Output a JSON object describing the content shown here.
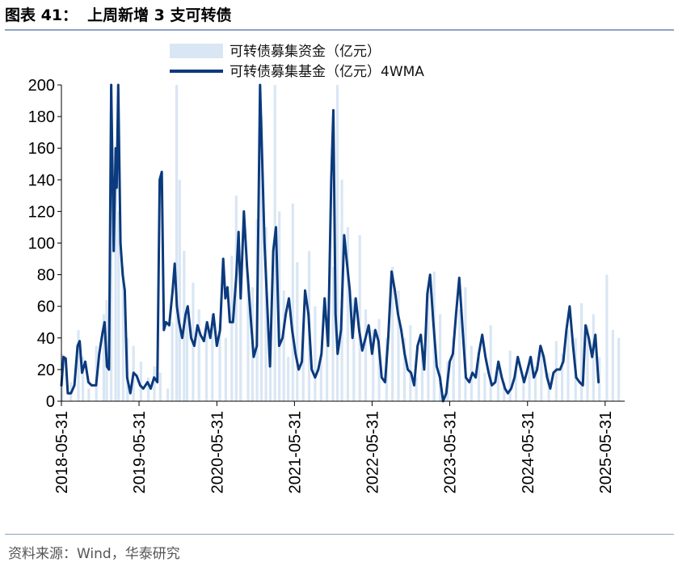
{
  "header": {
    "figure_number": "图表 41：",
    "title": "上周新增 3 支可转债"
  },
  "footer": {
    "source": "资料来源：Wind，华泰研究"
  },
  "colors": {
    "bars": "#d9e6f4",
    "line": "#0b3a7d",
    "rule": "#8ea3c2"
  },
  "chart_data": {
    "type": "bar+line",
    "title": "",
    "xlabel": "",
    "ylabel": "",
    "ylim": [
      0,
      200
    ],
    "yticks": [
      0,
      20,
      40,
      60,
      80,
      100,
      120,
      140,
      160,
      180,
      200
    ],
    "x_range": [
      "2018-05-31",
      "2025-08-31"
    ],
    "xticks": [
      "2018-05-31",
      "2019-05-31",
      "2020-05-31",
      "2021-05-31",
      "2022-05-31",
      "2023-05-31",
      "2024-05-31",
      "2025-05-31"
    ],
    "legend": {
      "position": "top",
      "entries": [
        "可转债募集资金（亿元）",
        "可转债募集基金（亿元）4WMA"
      ]
    },
    "series": [
      {
        "name": "可转债募集资金（亿元）",
        "type": "bar",
        "points": [
          [
            "2018-06-03",
            30
          ],
          [
            "2018-07-15",
            12
          ],
          [
            "2018-08-19",
            45
          ],
          [
            "2018-09-09",
            28
          ],
          [
            "2018-10-07",
            8
          ],
          [
            "2018-11-11",
            35
          ],
          [
            "2018-12-16",
            55
          ],
          [
            "2018-12-30",
            64
          ],
          [
            "2019-01-20",
            200
          ],
          [
            "2019-02-10",
            160
          ],
          [
            "2019-02-24",
            120
          ],
          [
            "2019-03-17",
            85
          ],
          [
            "2019-04-07",
            40
          ],
          [
            "2019-05-05",
            35
          ],
          [
            "2019-06-09",
            25
          ],
          [
            "2019-07-14",
            15
          ],
          [
            "2019-08-11",
            22
          ],
          [
            "2019-09-08",
            18
          ],
          [
            "2019-10-13",
            8
          ],
          [
            "2019-11-03",
            50
          ],
          [
            "2019-11-24",
            200
          ],
          [
            "2019-12-08",
            140
          ],
          [
            "2019-12-29",
            95
          ],
          [
            "2020-01-12",
            60
          ],
          [
            "2020-02-09",
            75
          ],
          [
            "2020-03-08",
            58
          ],
          [
            "2020-04-12",
            45
          ],
          [
            "2020-05-10",
            55
          ],
          [
            "2020-06-14",
            48
          ],
          [
            "2020-07-12",
            40
          ],
          [
            "2020-08-09",
            92
          ],
          [
            "2020-08-30",
            130
          ],
          [
            "2020-09-20",
            78
          ],
          [
            "2020-10-25",
            80
          ],
          [
            "2020-11-15",
            72
          ],
          [
            "2020-12-06",
            115
          ],
          [
            "2020-12-27",
            180
          ],
          [
            "2021-01-17",
            110
          ],
          [
            "2021-02-07",
            35
          ],
          [
            "2021-02-28",
            200
          ],
          [
            "2021-03-21",
            120
          ],
          [
            "2021-04-11",
            70
          ],
          [
            "2021-05-02",
            28
          ],
          [
            "2021-05-23",
            125
          ],
          [
            "2021-06-13",
            88
          ],
          [
            "2021-07-11",
            50
          ],
          [
            "2021-08-08",
            95
          ],
          [
            "2021-09-05",
            60
          ],
          [
            "2021-10-03",
            30
          ],
          [
            "2021-10-31",
            45
          ],
          [
            "2021-11-28",
            85
          ],
          [
            "2021-12-19",
            200
          ],
          [
            "2022-01-09",
            140
          ],
          [
            "2022-02-06",
            110
          ],
          [
            "2022-03-06",
            65
          ],
          [
            "2022-04-03",
            105
          ],
          [
            "2022-05-01",
            58
          ],
          [
            "2022-06-05",
            45
          ],
          [
            "2022-07-03",
            52
          ],
          [
            "2022-08-07",
            40
          ],
          [
            "2022-09-04",
            85
          ],
          [
            "2022-10-02",
            70
          ],
          [
            "2022-10-30",
            40
          ],
          [
            "2022-11-27",
            48
          ],
          [
            "2022-12-25",
            15
          ],
          [
            "2023-01-22",
            35
          ],
          [
            "2023-02-19",
            70
          ],
          [
            "2023-03-19",
            82
          ],
          [
            "2023-04-16",
            55
          ],
          [
            "2023-05-21",
            25
          ],
          [
            "2023-06-18",
            40
          ],
          [
            "2023-07-16",
            58
          ],
          [
            "2023-08-13",
            72
          ],
          [
            "2023-09-10",
            35
          ],
          [
            "2023-10-15",
            28
          ],
          [
            "2023-11-12",
            18
          ],
          [
            "2023-12-10",
            48
          ],
          [
            "2024-01-14",
            22
          ],
          [
            "2024-02-11",
            12
          ],
          [
            "2024-03-10",
            32
          ],
          [
            "2024-04-07",
            20
          ],
          [
            "2024-05-12",
            15
          ],
          [
            "2024-06-09",
            28
          ],
          [
            "2024-07-07",
            22
          ],
          [
            "2024-08-04",
            30
          ],
          [
            "2024-09-08",
            18
          ],
          [
            "2024-10-13",
            38
          ],
          [
            "2024-11-10",
            30
          ],
          [
            "2024-12-08",
            45
          ],
          [
            "2025-01-12",
            40
          ],
          [
            "2025-02-09",
            62
          ],
          [
            "2025-03-09",
            48
          ],
          [
            "2025-04-06",
            55
          ],
          [
            "2025-05-04",
            28
          ],
          [
            "2025-06-08",
            80
          ],
          [
            "2025-07-06",
            45
          ],
          [
            "2025-08-03",
            40
          ]
        ]
      },
      {
        "name": "可转债募集基金（亿元）4WMA",
        "type": "line",
        "points": [
          [
            "2018-05-31",
            10
          ],
          [
            "2018-06-10",
            28
          ],
          [
            "2018-06-20",
            27
          ],
          [
            "2018-06-30",
            5
          ],
          [
            "2018-07-15",
            5
          ],
          [
            "2018-07-31",
            10
          ],
          [
            "2018-08-15",
            35
          ],
          [
            "2018-08-25",
            38
          ],
          [
            "2018-09-05",
            18
          ],
          [
            "2018-09-20",
            25
          ],
          [
            "2018-10-05",
            12
          ],
          [
            "2018-10-20",
            10
          ],
          [
            "2018-11-10",
            10
          ],
          [
            "2018-11-25",
            30
          ],
          [
            "2018-12-10",
            43
          ],
          [
            "2018-12-20",
            50
          ],
          [
            "2018-12-31",
            22
          ],
          [
            "2019-01-10",
            20
          ],
          [
            "2019-01-20",
            200
          ],
          [
            "2019-02-01",
            95
          ],
          [
            "2019-02-10",
            160
          ],
          [
            "2019-02-15",
            135
          ],
          [
            "2019-02-22",
            200
          ],
          [
            "2019-03-05",
            100
          ],
          [
            "2019-03-15",
            80
          ],
          [
            "2019-03-25",
            70
          ],
          [
            "2019-04-05",
            15
          ],
          [
            "2019-04-20",
            5
          ],
          [
            "2019-05-05",
            18
          ],
          [
            "2019-05-20",
            16
          ],
          [
            "2019-06-05",
            10
          ],
          [
            "2019-06-20",
            8
          ],
          [
            "2019-07-10",
            12
          ],
          [
            "2019-07-25",
            8
          ],
          [
            "2019-08-10",
            15
          ],
          [
            "2019-08-25",
            12
          ],
          [
            "2019-09-05",
            140
          ],
          [
            "2019-09-15",
            145
          ],
          [
            "2019-09-25",
            45
          ],
          [
            "2019-10-05",
            50
          ],
          [
            "2019-10-20",
            48
          ],
          [
            "2019-11-05",
            70
          ],
          [
            "2019-11-15",
            87
          ],
          [
            "2019-11-25",
            60
          ],
          [
            "2019-12-05",
            50
          ],
          [
            "2019-12-20",
            40
          ],
          [
            "2020-01-05",
            55
          ],
          [
            "2020-01-15",
            60
          ],
          [
            "2020-01-31",
            40
          ],
          [
            "2020-02-15",
            35
          ],
          [
            "2020-03-01",
            48
          ],
          [
            "2020-03-15",
            42
          ],
          [
            "2020-03-31",
            38
          ],
          [
            "2020-04-15",
            50
          ],
          [
            "2020-04-30",
            40
          ],
          [
            "2020-05-15",
            55
          ],
          [
            "2020-05-31",
            35
          ],
          [
            "2020-06-15",
            45
          ],
          [
            "2020-06-30",
            90
          ],
          [
            "2020-07-10",
            65
          ],
          [
            "2020-07-20",
            72
          ],
          [
            "2020-07-31",
            50
          ],
          [
            "2020-08-15",
            50
          ],
          [
            "2020-08-31",
            80
          ],
          [
            "2020-09-10",
            107
          ],
          [
            "2020-09-20",
            65
          ],
          [
            "2020-10-05",
            120
          ],
          [
            "2020-10-20",
            85
          ],
          [
            "2020-11-05",
            55
          ],
          [
            "2020-11-20",
            28
          ],
          [
            "2020-12-05",
            35
          ],
          [
            "2020-12-20",
            200
          ],
          [
            "2020-12-31",
            150
          ],
          [
            "2021-01-10",
            100
          ],
          [
            "2021-01-25",
            55
          ],
          [
            "2021-02-05",
            22
          ],
          [
            "2021-02-20",
            95
          ],
          [
            "2021-03-05",
            110
          ],
          [
            "2021-03-20",
            35
          ],
          [
            "2021-04-05",
            40
          ],
          [
            "2021-04-20",
            55
          ],
          [
            "2021-05-05",
            65
          ],
          [
            "2021-05-20",
            45
          ],
          [
            "2021-06-05",
            30
          ],
          [
            "2021-06-20",
            20
          ],
          [
            "2021-07-05",
            25
          ],
          [
            "2021-07-20",
            70
          ],
          [
            "2021-08-05",
            55
          ],
          [
            "2021-08-20",
            20
          ],
          [
            "2021-09-05",
            15
          ],
          [
            "2021-09-20",
            20
          ],
          [
            "2021-10-05",
            30
          ],
          [
            "2021-10-20",
            65
          ],
          [
            "2021-11-05",
            35
          ],
          [
            "2021-11-20",
            140
          ],
          [
            "2021-11-30",
            184
          ],
          [
            "2021-12-10",
            55
          ],
          [
            "2021-12-20",
            30
          ],
          [
            "2022-01-05",
            45
          ],
          [
            "2022-01-20",
            105
          ],
          [
            "2022-01-31",
            90
          ],
          [
            "2022-02-15",
            70
          ],
          [
            "2022-02-28",
            40
          ],
          [
            "2022-03-15",
            65
          ],
          [
            "2022-03-31",
            45
          ],
          [
            "2022-04-15",
            32
          ],
          [
            "2022-04-30",
            40
          ],
          [
            "2022-05-15",
            48
          ],
          [
            "2022-05-31",
            30
          ],
          [
            "2022-06-15",
            45
          ],
          [
            "2022-06-30",
            38
          ],
          [
            "2022-07-15",
            15
          ],
          [
            "2022-07-31",
            12
          ],
          [
            "2022-08-15",
            40
          ],
          [
            "2022-08-31",
            82
          ],
          [
            "2022-09-15",
            70
          ],
          [
            "2022-09-30",
            55
          ],
          [
            "2022-10-15",
            45
          ],
          [
            "2022-10-31",
            30
          ],
          [
            "2022-11-15",
            20
          ],
          [
            "2022-11-30",
            18
          ],
          [
            "2022-12-15",
            10
          ],
          [
            "2022-12-31",
            35
          ],
          [
            "2023-01-15",
            42
          ],
          [
            "2023-01-31",
            20
          ],
          [
            "2023-02-15",
            68
          ],
          [
            "2023-02-28",
            80
          ],
          [
            "2023-03-15",
            50
          ],
          [
            "2023-03-31",
            22
          ],
          [
            "2023-04-15",
            15
          ],
          [
            "2023-04-30",
            0
          ],
          [
            "2023-05-15",
            5
          ],
          [
            "2023-05-31",
            25
          ],
          [
            "2023-06-15",
            30
          ],
          [
            "2023-06-30",
            55
          ],
          [
            "2023-07-15",
            78
          ],
          [
            "2023-07-31",
            45
          ],
          [
            "2023-08-15",
            15
          ],
          [
            "2023-08-31",
            12
          ],
          [
            "2023-09-15",
            18
          ],
          [
            "2023-09-30",
            15
          ],
          [
            "2023-10-15",
            30
          ],
          [
            "2023-10-31",
            42
          ],
          [
            "2023-11-15",
            28
          ],
          [
            "2023-11-30",
            18
          ],
          [
            "2023-12-15",
            10
          ],
          [
            "2023-12-31",
            12
          ],
          [
            "2024-01-15",
            25
          ],
          [
            "2024-01-31",
            15
          ],
          [
            "2024-02-15",
            8
          ],
          [
            "2024-02-29",
            5
          ],
          [
            "2024-03-15",
            8
          ],
          [
            "2024-03-31",
            15
          ],
          [
            "2024-04-15",
            28
          ],
          [
            "2024-04-30",
            20
          ],
          [
            "2024-05-15",
            12
          ],
          [
            "2024-05-31",
            20
          ],
          [
            "2024-06-15",
            28
          ],
          [
            "2024-06-30",
            15
          ],
          [
            "2024-07-15",
            20
          ],
          [
            "2024-07-31",
            35
          ],
          [
            "2024-08-15",
            28
          ],
          [
            "2024-08-31",
            15
          ],
          [
            "2024-09-15",
            8
          ],
          [
            "2024-09-30",
            18
          ],
          [
            "2024-10-15",
            20
          ],
          [
            "2024-10-31",
            20
          ],
          [
            "2024-11-15",
            25
          ],
          [
            "2024-11-30",
            45
          ],
          [
            "2024-12-15",
            60
          ],
          [
            "2024-12-31",
            35
          ],
          [
            "2025-01-15",
            15
          ],
          [
            "2025-01-31",
            12
          ],
          [
            "2025-02-15",
            10
          ],
          [
            "2025-02-28",
            48
          ],
          [
            "2025-03-15",
            40
          ],
          [
            "2025-03-31",
            28
          ],
          [
            "2025-04-15",
            42
          ],
          [
            "2025-04-30",
            12
          ]
        ]
      }
    ]
  }
}
